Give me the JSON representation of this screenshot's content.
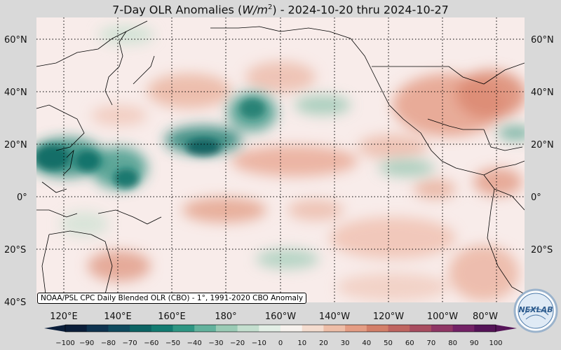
{
  "title": {
    "prefix": "7-Day OLR Anomalies (",
    "unit_base": "W/m",
    "unit_exp": "2",
    "suffix": ") - 2024-10-20 thru 2024-10-27"
  },
  "credit": "NOAA/PSL CPC Daily Blended OLR (CBO) - 1°, 1991-2020 CBO Anomaly",
  "logo_text": "NEXLAB",
  "lat_labels": [
    "60°N",
    "40°N",
    "20°N",
    "0°",
    "20°S",
    "40°S"
  ],
  "lon_labels": [
    "120°E",
    "140°E",
    "160°E",
    "180°",
    "160°W",
    "140°W",
    "120°W",
    "100°W",
    "80°W"
  ],
  "colorbar": {
    "ticks": [
      "−100",
      "−90",
      "−80",
      "−70",
      "−60",
      "−50",
      "−40",
      "−30",
      "−20",
      "−10",
      "0",
      "10",
      "20",
      "30",
      "40",
      "50",
      "60",
      "70",
      "80",
      "90",
      "100"
    ],
    "colors": [
      "#0b1e3a",
      "#0f3350",
      "#0f4a5e",
      "#0d6464",
      "#137b71",
      "#2e9683",
      "#63b29d",
      "#9acbb5",
      "#c4dfcf",
      "#e3efe6",
      "#f7f2ee",
      "#f4dccf",
      "#eebea8",
      "#e49d84",
      "#d37f69",
      "#bf6560",
      "#a84d60",
      "#8f3665",
      "#732266",
      "#551458"
    ]
  },
  "colors": {
    "background": "#d9d9d9",
    "map_base": "#f8ecea",
    "wet": "#1d7f72",
    "dry": "#e0907a"
  }
}
